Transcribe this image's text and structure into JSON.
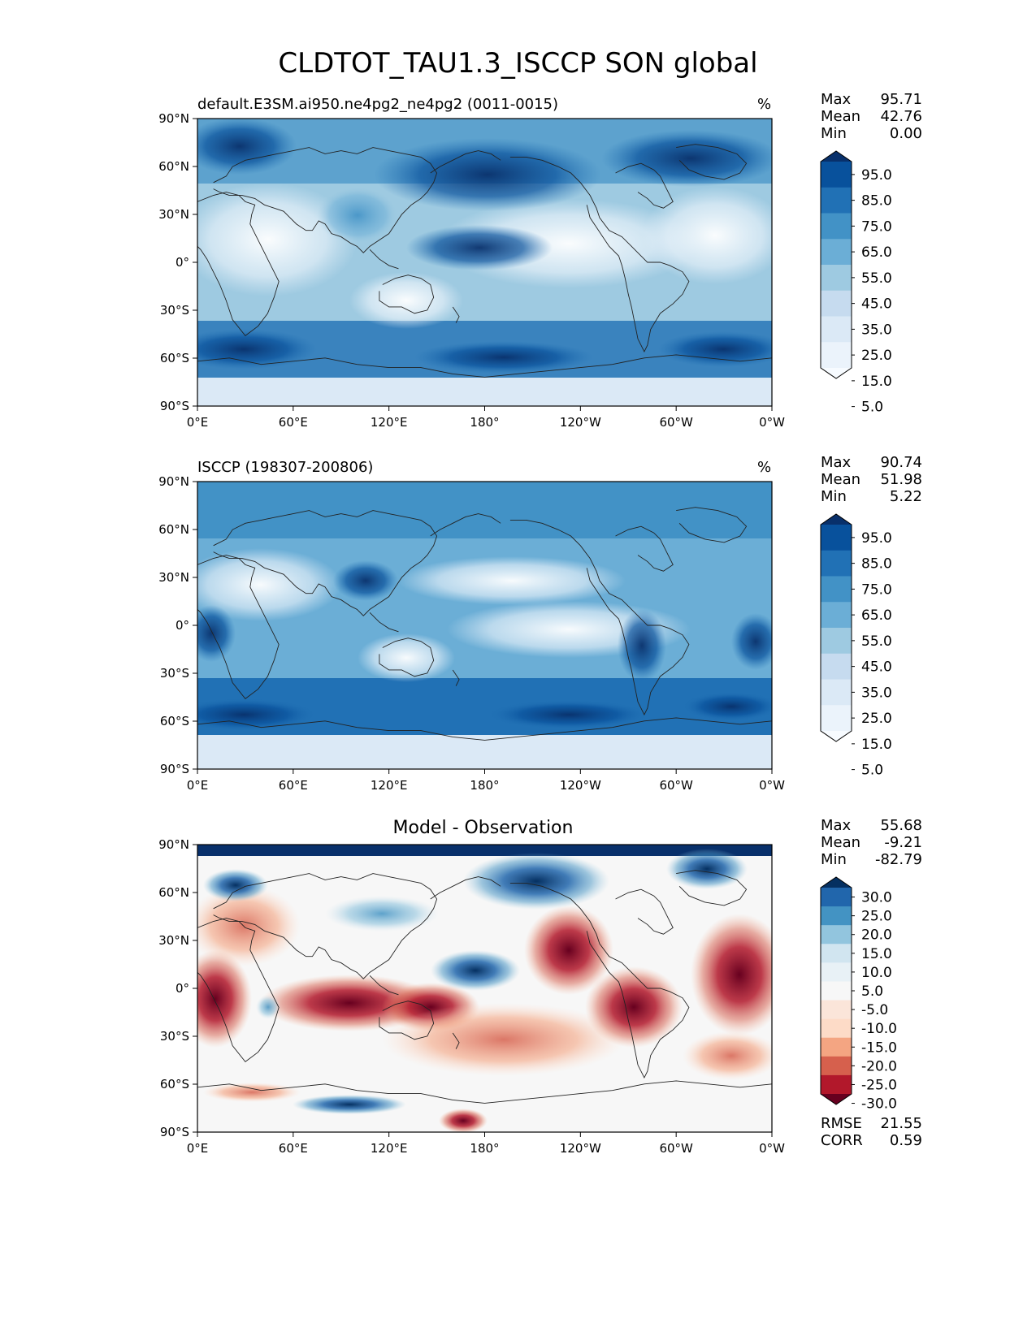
{
  "title": "CLDTOT_TAU1.3_ISCCP SON global",
  "panels": [
    {
      "title": "default.E3SM.ai950.ne4pg2_ne4pg2 (0011-0015)",
      "units": "%",
      "stats": [
        {
          "label": "Max",
          "value": "95.71"
        },
        {
          "label": "Mean",
          "value": "42.76"
        },
        {
          "label": "Min",
          "value": "0.00"
        }
      ],
      "colorbar": {
        "labels": [
          "95.0",
          "85.0",
          "75.0",
          "65.0",
          "55.0",
          "45.0",
          "35.0",
          "25.0",
          "15.0",
          "5.0"
        ],
        "colors": [
          "#08306b",
          "#08519c",
          "#2171b5",
          "#4292c6",
          "#6baed6",
          "#9ecae1",
          "#c6dbef",
          "#dbe9f6",
          "#ebf3fb",
          "#f7fbff"
        ]
      }
    },
    {
      "title": "ISCCP (198307-200806)",
      "units": "%",
      "stats": [
        {
          "label": "Max",
          "value": "90.74"
        },
        {
          "label": "Mean",
          "value": "51.98"
        },
        {
          "label": "Min",
          "value": "5.22"
        }
      ],
      "colorbar": {
        "labels": [
          "95.0",
          "85.0",
          "75.0",
          "65.0",
          "55.0",
          "45.0",
          "35.0",
          "25.0",
          "15.0",
          "5.0"
        ],
        "colors": [
          "#08306b",
          "#08519c",
          "#2171b5",
          "#4292c6",
          "#6baed6",
          "#9ecae1",
          "#c6dbef",
          "#dbe9f6",
          "#ebf3fb",
          "#f7fbff"
        ]
      }
    },
    {
      "title": "Model - Observation",
      "units": "",
      "stats": [
        {
          "label": "Max",
          "value": "55.68"
        },
        {
          "label": "Mean",
          "value": "-9.21"
        },
        {
          "label": "Min",
          "value": "-82.79"
        }
      ],
      "colorbar": {
        "labels": [
          "30.0",
          "25.0",
          "20.0",
          "15.0",
          "10.0",
          "5.0",
          "-5.0",
          "-10.0",
          "-15.0",
          "-20.0",
          "-25.0",
          "-30.0"
        ],
        "colors": [
          "#053061",
          "#2166ac",
          "#4393c3",
          "#92c5de",
          "#d1e5f0",
          "#e8f1f6",
          "#f7f7f7",
          "#fbe5d9",
          "#fddbc7",
          "#f4a582",
          "#d6604d",
          "#b2182b",
          "#67001f"
        ]
      },
      "metrics": [
        {
          "label": "RMSE",
          "value": "21.55"
        },
        {
          "label": "CORR",
          "value": "0.59"
        }
      ]
    }
  ],
  "axes": {
    "lat_ticks": [
      "90°N",
      "60°N",
      "30°N",
      "0°",
      "30°S",
      "60°S",
      "90°S"
    ],
    "lon_ticks": [
      "0°E",
      "60°E",
      "120°E",
      "180°",
      "120°W",
      "60°W",
      "0°W"
    ]
  }
}
